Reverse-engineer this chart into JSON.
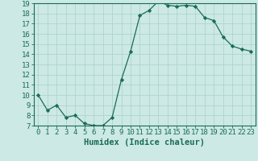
{
  "xlabel": "Humidex (Indice chaleur)",
  "x": [
    0,
    1,
    2,
    3,
    4,
    5,
    6,
    7,
    8,
    9,
    10,
    11,
    12,
    13,
    14,
    15,
    16,
    17,
    18,
    19,
    20,
    21,
    22,
    23
  ],
  "y": [
    10.0,
    8.5,
    9.0,
    7.8,
    8.0,
    7.2,
    7.0,
    7.0,
    7.8,
    11.5,
    14.3,
    17.8,
    18.3,
    19.2,
    18.8,
    18.7,
    18.8,
    18.7,
    17.6,
    17.3,
    15.7,
    14.8,
    14.5,
    14.3
  ],
  "ylim": [
    7,
    19
  ],
  "yticks": [
    7,
    8,
    9,
    10,
    11,
    12,
    13,
    14,
    15,
    16,
    17,
    18,
    19
  ],
  "line_color": "#1a6b5a",
  "marker": "D",
  "marker_size": 2.2,
  "bg_color": "#cce9e5",
  "grid_color": "#afd4cf",
  "axis_color": "#1a6b5a",
  "tick_color": "#1a6b5a",
  "label_color": "#1a6b5a",
  "xlabel_fontsize": 7.5,
  "tick_fontsize": 6.5
}
